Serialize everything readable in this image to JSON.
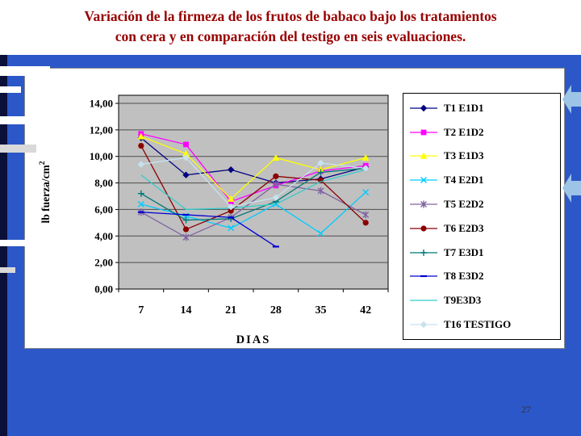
{
  "slide": {
    "title_lines": [
      "Variación de la firmeza de los frutos de babaco bajo los tratamientos",
      "con cera y en comparación del testigo en seis evaluaciones."
    ],
    "title_color": "#990000",
    "background_color": "#2B57C8",
    "page_number": "27"
  },
  "chart_data": {
    "type": "line",
    "title": "",
    "xlabel": "DIAS",
    "ylabel": "lb fuerza/cm",
    "ylabel_sup": "2",
    "x_ticks": [
      "7",
      "14",
      "21",
      "28",
      "35",
      "42"
    ],
    "y_ticks": [
      "0,00",
      "2,00",
      "4,00",
      "6,00",
      "8,00",
      "10,00",
      "12,00",
      "14,00"
    ],
    "categories": [
      7,
      14,
      21,
      28,
      35,
      42
    ],
    "ylim": [
      0,
      14
    ],
    "grid": true,
    "legend_position": "right",
    "plot_bg": "#C0C0C0",
    "series": [
      {
        "name": "T1 E1D1",
        "color": "#000080",
        "marker": "diamond",
        "values": [
          11.4,
          8.6,
          9.0,
          8.0,
          8.3,
          9.2
        ]
      },
      {
        "name": "T2 E1D2",
        "color": "#FF00FF",
        "marker": "square",
        "values": [
          11.7,
          10.9,
          6.6,
          7.8,
          8.9,
          9.3
        ]
      },
      {
        "name": "T3 E1D3",
        "color": "#FFFF00",
        "marker": "triangle",
        "values": [
          11.5,
          10.2,
          6.8,
          9.9,
          9.0,
          9.9
        ]
      },
      {
        "name": "T4 E2D1",
        "color": "#00CCFF",
        "marker": "x",
        "values": [
          6.4,
          5.5,
          4.6,
          6.4,
          4.2,
          7.3
        ]
      },
      {
        "name": "T5 E2D2",
        "color": "#8064A2",
        "marker": "asterisk",
        "values": [
          5.8,
          3.9,
          5.4,
          7.9,
          7.4,
          5.6
        ]
      },
      {
        "name": "T6 E2D3",
        "color": "#8B0000",
        "marker": "circle",
        "values": [
          10.8,
          4.5,
          5.9,
          8.5,
          8.2,
          5.0
        ]
      },
      {
        "name": "T7 E3D1",
        "color": "#007878",
        "marker": "plus",
        "values": [
          7.2,
          5.2,
          5.3,
          6.6,
          8.8,
          9.1
        ]
      },
      {
        "name": "T8 E3D2",
        "color": "#0000D0",
        "marker": "dash",
        "values": [
          5.8,
          5.6,
          5.4,
          3.2,
          null,
          null
        ]
      },
      {
        "name": "T9E3D3",
        "color": "#33CCCC",
        "marker": "none",
        "values": [
          8.6,
          6.0,
          6.1,
          6.4,
          8.1,
          9.0
        ]
      },
      {
        "name": "T16 TESTIGO",
        "color": "#C6E2EE",
        "marker": "diamond",
        "values": [
          9.4,
          9.9,
          6.2,
          6.9,
          9.5,
          9.1
        ]
      }
    ]
  }
}
